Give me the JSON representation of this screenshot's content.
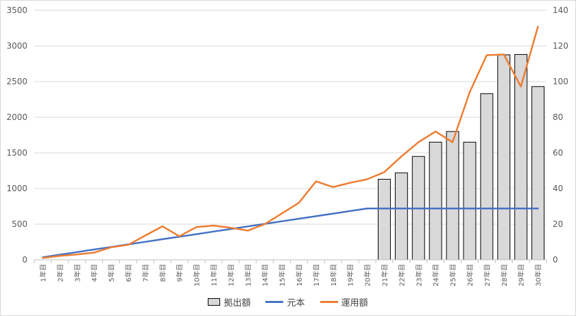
{
  "chart_data": {
    "type": "bar+line",
    "categories": [
      "1年目",
      "2年目",
      "3年目",
      "4年目",
      "5年目",
      "6年目",
      "7年目",
      "8年目",
      "9年目",
      "10年目",
      "11年目",
      "12年目",
      "13年目",
      "14年目",
      "15年目",
      "16年目",
      "17年目",
      "18年目",
      "19年目",
      "20年目",
      "21年目",
      "22年目",
      "23年目",
      "24年目",
      "25年目",
      "26年目",
      "27年目",
      "28年目",
      "29年目",
      "30年目"
    ],
    "y_left": {
      "min": 0,
      "max": 3500,
      "ticks": [
        0,
        500,
        1000,
        1500,
        2000,
        2500,
        3000,
        3500
      ]
    },
    "y_right": {
      "min": 0,
      "max": 140,
      "ticks": [
        0,
        20,
        40,
        60,
        80,
        100,
        120,
        140
      ]
    },
    "grid": true,
    "legend_position": "bottom",
    "series": [
      {
        "name": "拠出額",
        "kind": "bar",
        "axis": "right",
        "color": "#d9d9d9",
        "values": [
          null,
          null,
          null,
          null,
          null,
          null,
          null,
          null,
          null,
          null,
          null,
          null,
          null,
          null,
          null,
          null,
          null,
          null,
          null,
          null,
          45.2,
          48.8,
          58.0,
          66.0,
          72.0,
          66.0,
          93.2,
          115.0,
          115.2,
          97.2
        ]
      },
      {
        "name": "元本",
        "kind": "line",
        "axis": "left",
        "color": "#4472c4",
        "values": [
          36,
          72,
          108,
          144,
          180,
          216,
          252,
          288,
          324,
          360,
          396,
          432,
          468,
          504,
          540,
          576,
          612,
          648,
          684,
          720,
          720,
          720,
          720,
          720,
          720,
          720,
          720,
          720,
          720,
          720
        ]
      },
      {
        "name": "運用額",
        "kind": "line",
        "axis": "left",
        "color": "#ed7d31",
        "values": [
          25,
          55,
          75,
          100,
          175,
          210,
          340,
          470,
          330,
          460,
          480,
          450,
          410,
          500,
          650,
          800,
          1100,
          1020,
          1080,
          1130,
          1230,
          1450,
          1650,
          1800,
          1650,
          2350,
          2870,
          2880,
          2430,
          3270
        ]
      }
    ]
  }
}
